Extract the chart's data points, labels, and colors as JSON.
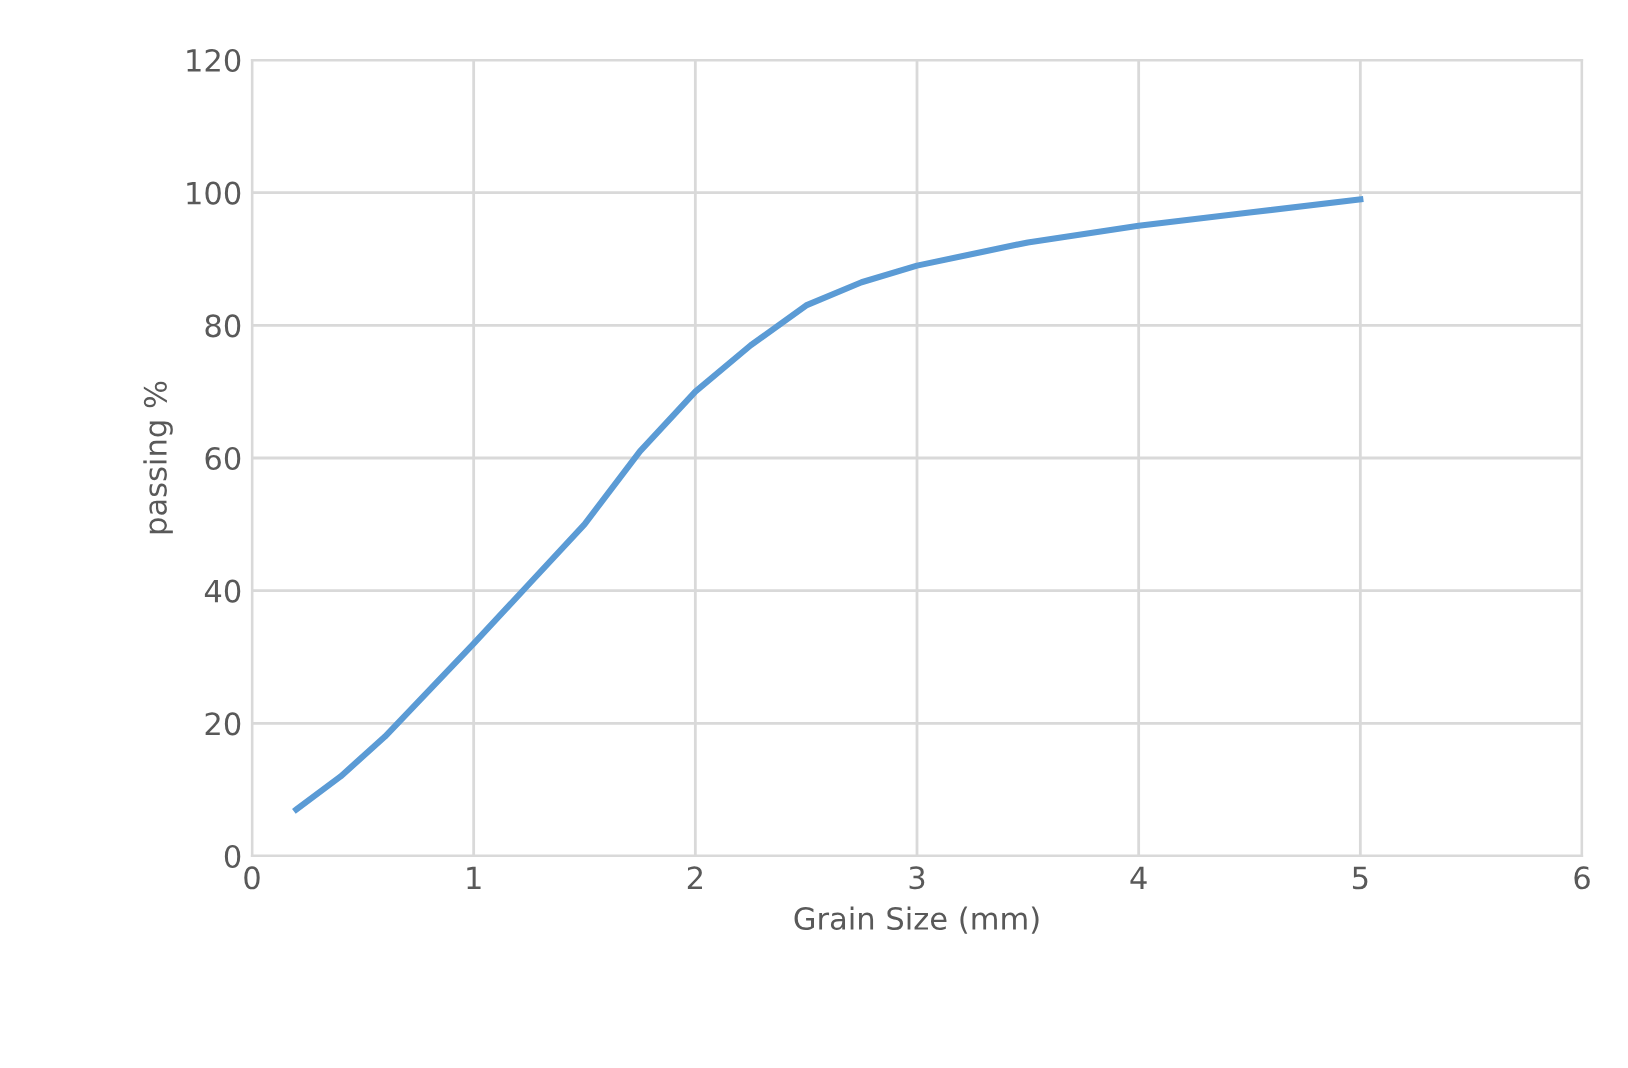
{
  "chart_data": {
    "type": "line",
    "xlabel": "Grain Size (mm)",
    "ylabel": "passing %",
    "series": [
      {
        "color": "#5b9bd5",
        "x": [
          0.2,
          0.4,
          0.6,
          0.8,
          1,
          1.25,
          1.5,
          1.75,
          2,
          2.25,
          2.5,
          2.75,
          3,
          3.5,
          4,
          4.5,
          5
        ],
        "values": [
          7,
          12,
          18,
          25,
          32,
          41,
          50,
          61,
          70,
          77,
          83,
          86.5,
          89,
          92.5,
          95,
          97,
          99
        ]
      }
    ],
    "xlim": [
      0,
      6
    ],
    "xticks": [
      0,
      1,
      2,
      3,
      4,
      5,
      6
    ],
    "ylim": [
      0,
      120
    ],
    "yticks": [
      0,
      20,
      40,
      60,
      80,
      100,
      120
    ],
    "grid": true,
    "marker": "none",
    "line_style": "solid",
    "legend": false
  }
}
